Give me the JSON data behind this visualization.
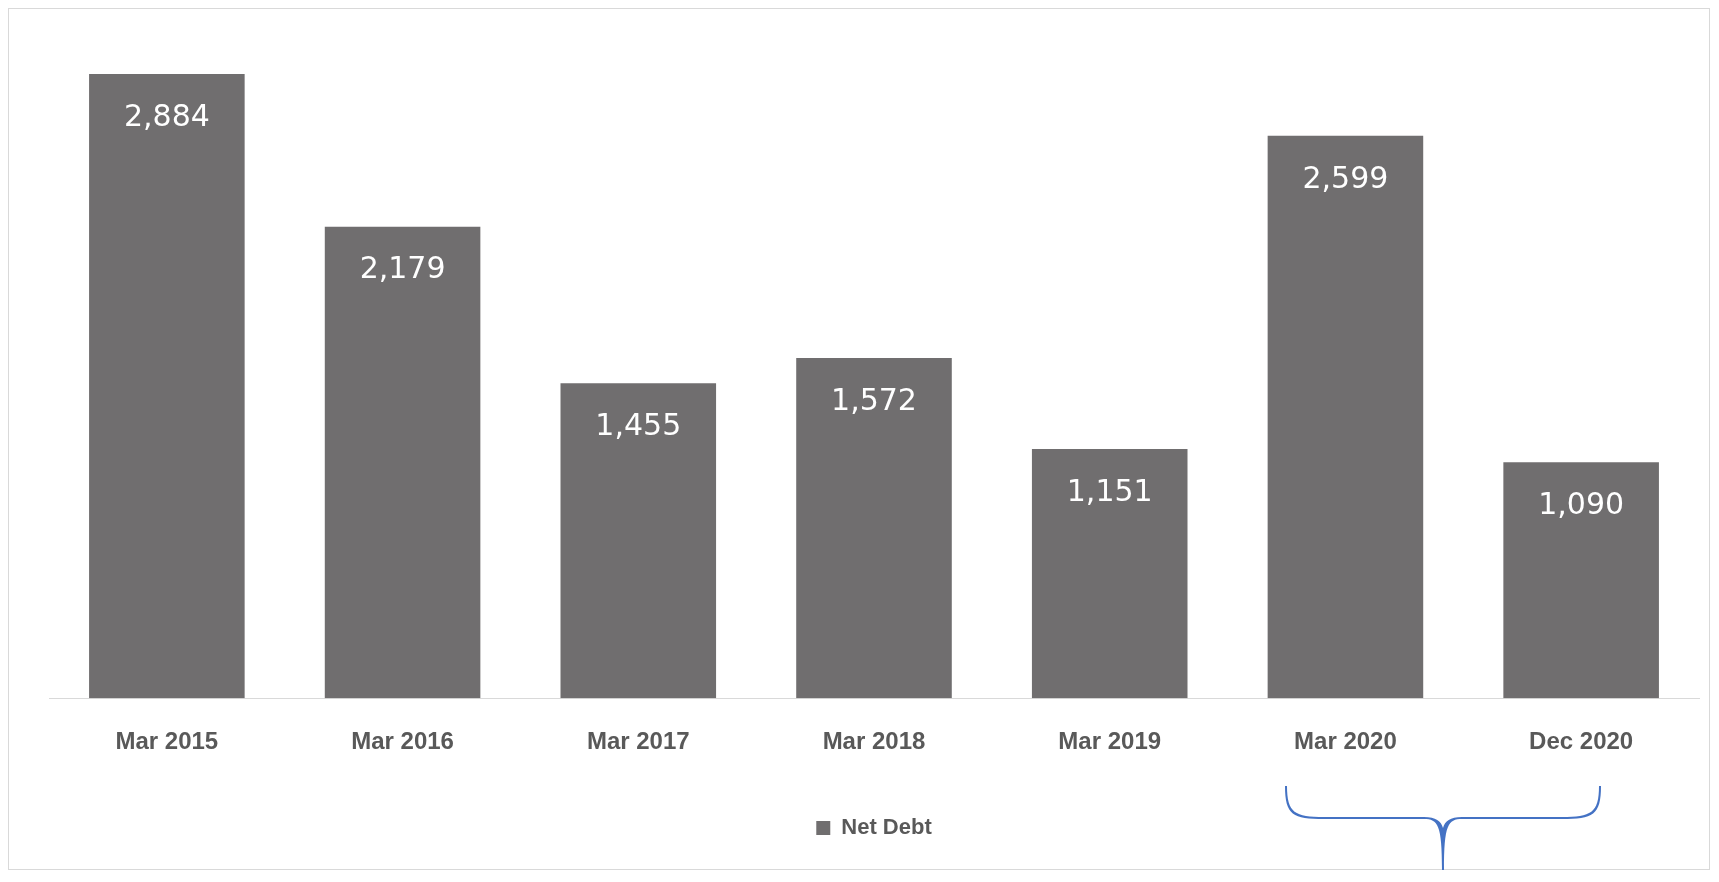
{
  "chart_data": {
    "type": "bar",
    "categories": [
      "Mar 2015",
      "Mar 2016",
      "Mar 2017",
      "Mar 2018",
      "Mar 2019",
      "Mar 2020",
      "Dec 2020"
    ],
    "series": [
      {
        "name": "Net Debt",
        "color": "#706e6f",
        "values": [
          2884,
          2179,
          1455,
          1572,
          1151,
          2599,
          1090
        ],
        "value_labels": [
          "2,884",
          "2,179",
          "1,455",
          "1,572",
          "1,151",
          "2,599",
          "1,090"
        ]
      }
    ],
    "legend": "bottom",
    "grid": false
  }
}
